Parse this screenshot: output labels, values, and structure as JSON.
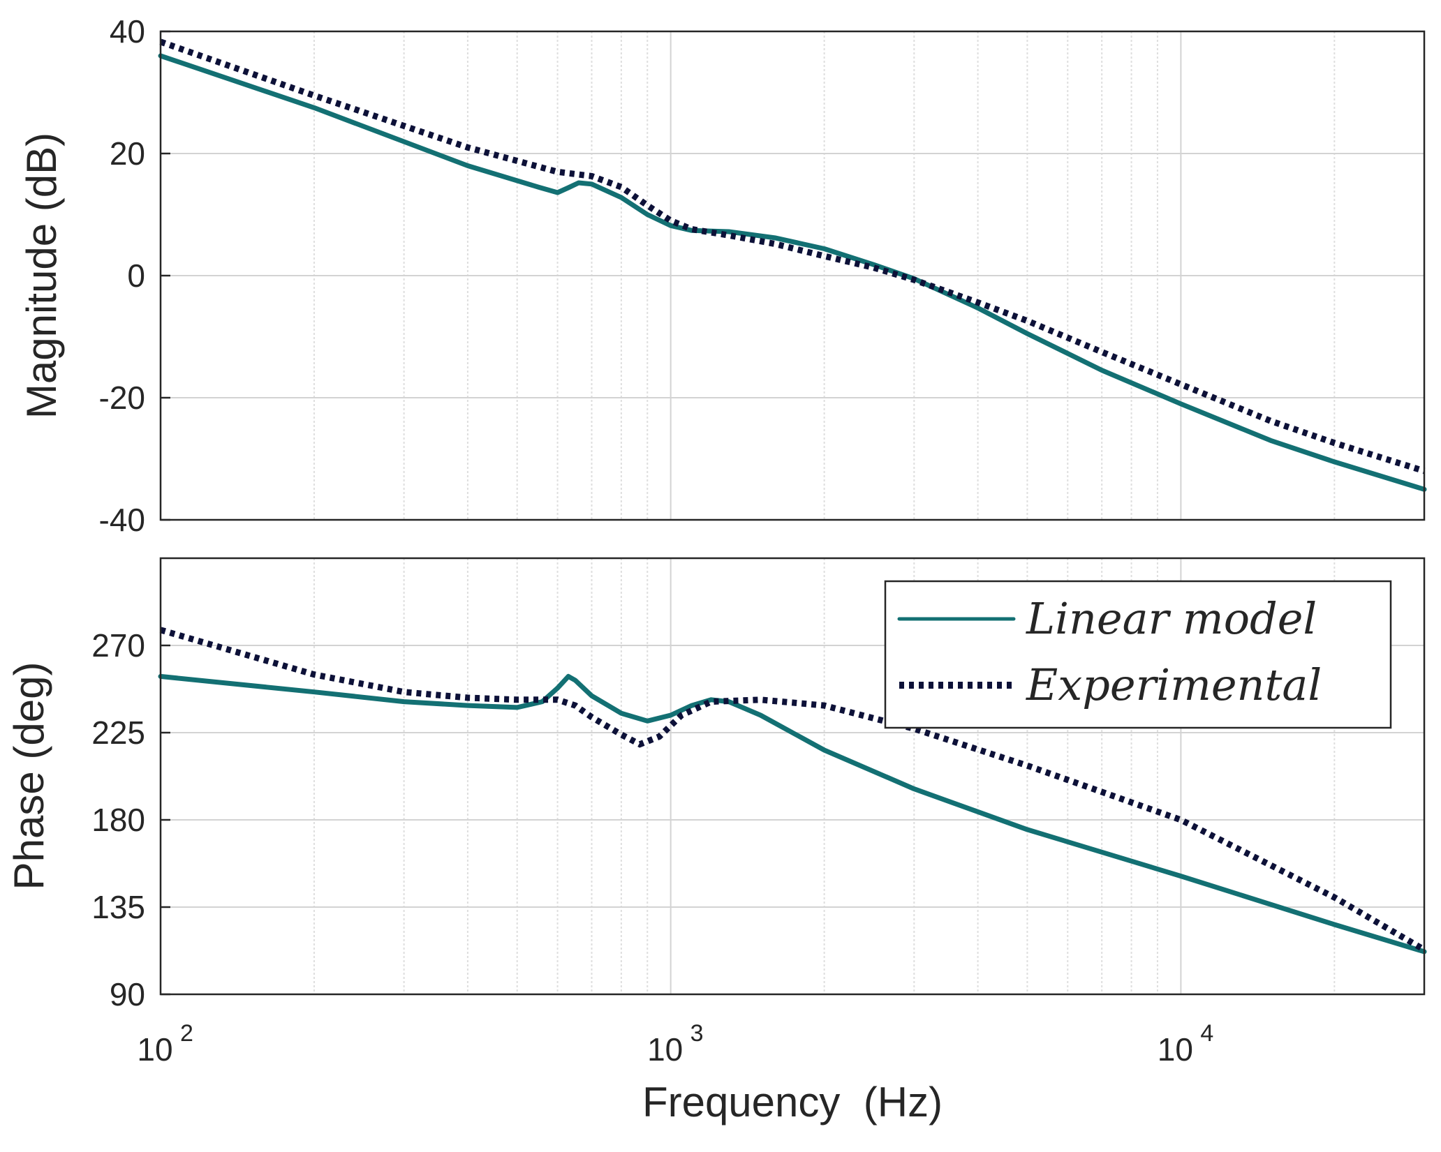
{
  "chart_data": [
    {
      "type": "line",
      "panel": "magnitude",
      "xscale": "log",
      "xlim": [
        100,
        30000
      ],
      "ylim": [
        -40,
        40
      ],
      "yticks": [
        40,
        20,
        0,
        -20,
        -40
      ],
      "ytick_labels": [
        "40",
        "20",
        "0",
        "-20",
        "-40"
      ],
      "xlabel": "",
      "ylabel": "Magnitude (dB)",
      "grid": true,
      "series": [
        {
          "name": "Linear model",
          "color": "#137073",
          "style": "solid",
          "x": [
            100,
            200,
            400,
            550,
            600,
            630,
            660,
            700,
            800,
            900,
            1000,
            1100,
            1300,
            1600,
            2000,
            2500,
            3000,
            4000,
            5000,
            7000,
            10000,
            15000,
            20000,
            30000
          ],
          "y": [
            36,
            27.5,
            18,
            14.5,
            13.6,
            14.4,
            15.2,
            15.0,
            12.8,
            10.0,
            8.2,
            7.4,
            7.2,
            6.2,
            4.4,
            1.8,
            -0.5,
            -5.3,
            -9.5,
            -15.5,
            -21,
            -27,
            -30.5,
            -35
          ]
        },
        {
          "name": "Experimental",
          "color": "#0d1138",
          "style": "dotted",
          "x": [
            100,
            200,
            400,
            600,
            700,
            800,
            900,
            1000,
            1100,
            1300,
            1600,
            2000,
            2500,
            3000,
            4000,
            5000,
            7000,
            10000,
            15000,
            20000,
            30000
          ],
          "y": [
            38.3,
            29.5,
            21,
            17,
            16.3,
            14.5,
            11.5,
            9.0,
            7.6,
            6.6,
            5.2,
            3.2,
            1.3,
            -0.7,
            -4.4,
            -7.4,
            -12.5,
            -17.8,
            -23.8,
            -27.4,
            -32
          ]
        }
      ]
    },
    {
      "type": "line",
      "panel": "phase",
      "xscale": "log",
      "xlim": [
        100,
        30000
      ],
      "ylim": [
        90,
        315
      ],
      "yticks": [
        90,
        135,
        180,
        225,
        270
      ],
      "ytick_labels": [
        "90",
        "135",
        "180",
        "225",
        "270"
      ],
      "xticks": [
        100,
        1000,
        10000
      ],
      "xtick_labels": [
        "10",
        "10",
        "10"
      ],
      "xtick_exponents": [
        "2",
        "3",
        "4"
      ],
      "xlabel": "Frequency  (Hz)",
      "ylabel": "Phase (deg)",
      "grid": true,
      "legend_position": "top-right",
      "series": [
        {
          "name": "Linear model",
          "color": "#137073",
          "style": "solid",
          "x": [
            100,
            200,
            300,
            400,
            500,
            560,
            600,
            630,
            650,
            700,
            800,
            900,
            1000,
            1100,
            1200,
            1300,
            1500,
            2000,
            3000,
            5000,
            10000,
            20000,
            30000
          ],
          "y": [
            254,
            246,
            241,
            239,
            238,
            241,
            248,
            254,
            252,
            244,
            235,
            231,
            234,
            239,
            242,
            241,
            234,
            216,
            196,
            175,
            151,
            126,
            112
          ]
        },
        {
          "name": "Experimental",
          "color": "#0d1138",
          "style": "dotted",
          "x": [
            100,
            200,
            300,
            400,
            500,
            600,
            650,
            700,
            800,
            870,
            950,
            1050,
            1200,
            1500,
            2000,
            3000,
            5000,
            10000,
            20000,
            30000
          ],
          "y": [
            278,
            255,
            246,
            243,
            242,
            242,
            239,
            233,
            224,
            219,
            223,
            234,
            241,
            242,
            239,
            227,
            208,
            180,
            140,
            113
          ]
        }
      ]
    }
  ]
}
